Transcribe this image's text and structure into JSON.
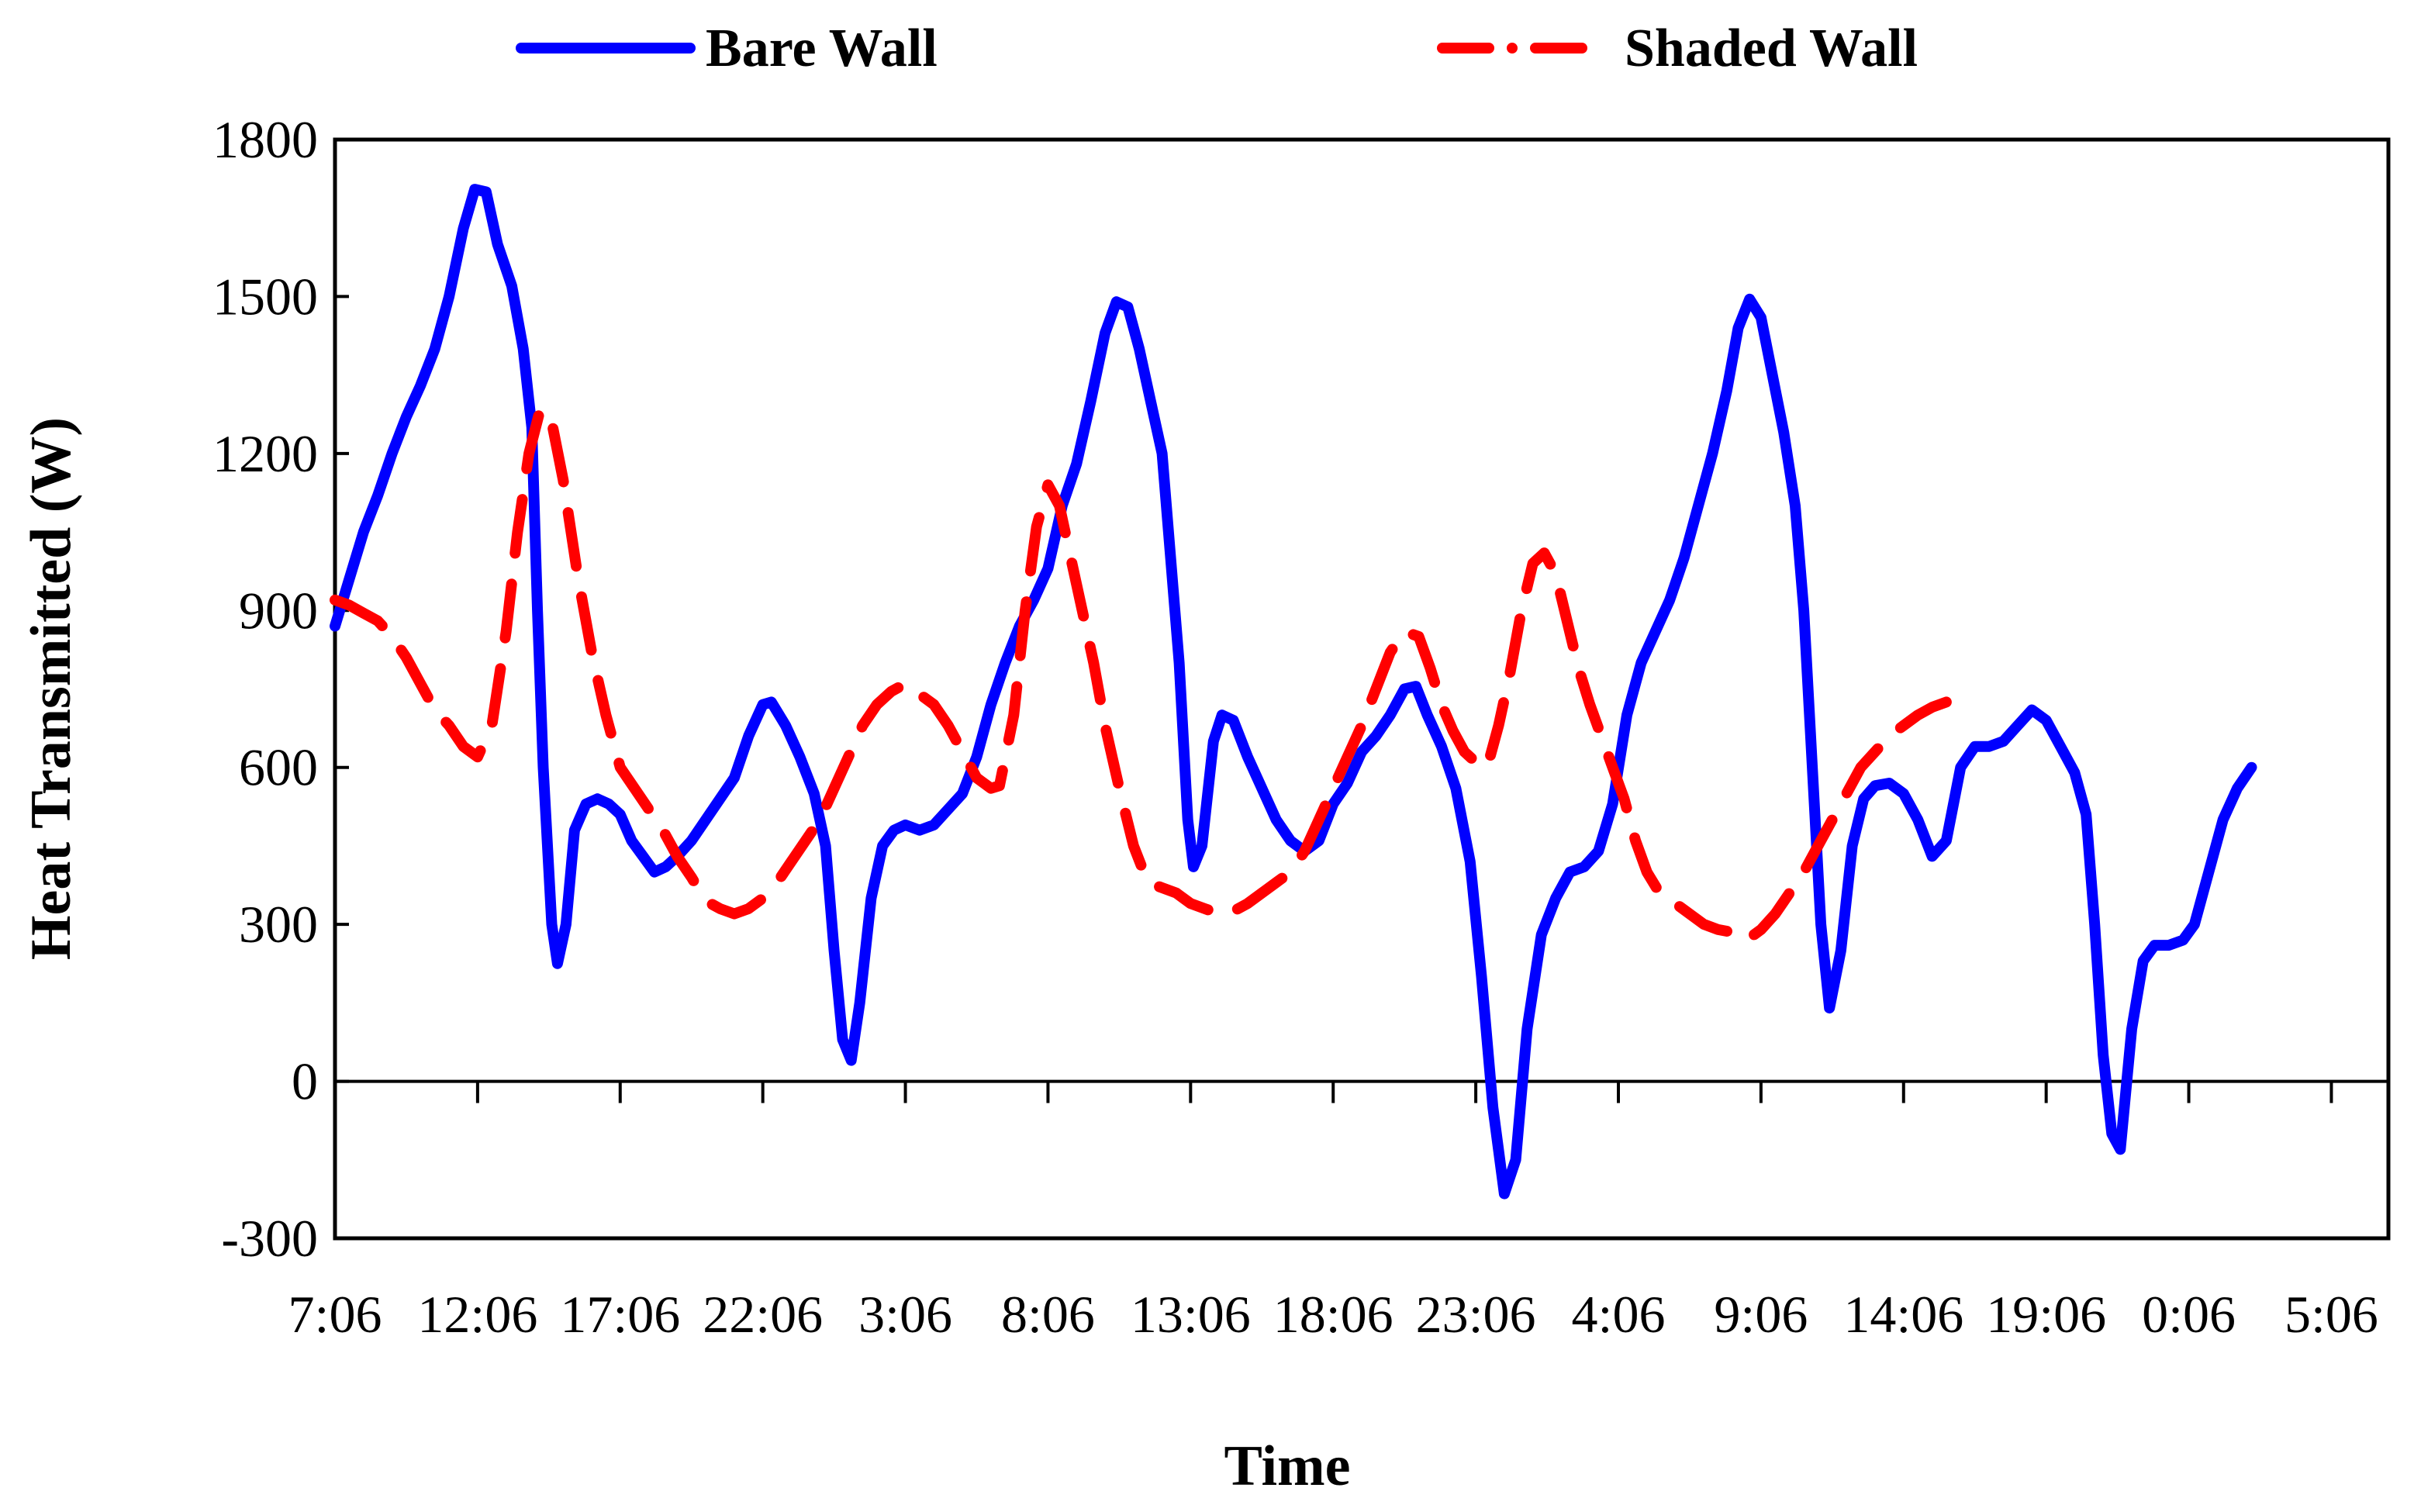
{
  "chart_data": {
    "type": "line",
    "title": "",
    "xlabel": "Time",
    "ylabel": "Heat Transmitted (W)",
    "ylim": [
      -300,
      1800
    ],
    "yticks": [
      -300,
      0,
      300,
      600,
      900,
      1200,
      1500,
      1800
    ],
    "xlim": [
      0,
      72
    ],
    "x_ticks": [
      {
        "x": 0,
        "label": "7:06"
      },
      {
        "x": 5,
        "label": "12:06"
      },
      {
        "x": 10,
        "label": "17:06"
      },
      {
        "x": 15,
        "label": "22:06"
      },
      {
        "x": 20,
        "label": "3:06"
      },
      {
        "x": 25,
        "label": "8:06"
      },
      {
        "x": 30,
        "label": "13:06"
      },
      {
        "x": 35,
        "label": "18:06"
      },
      {
        "x": 40,
        "label": "23:06"
      },
      {
        "x": 45,
        "label": "4:06"
      },
      {
        "x": 50,
        "label": "9:06"
      },
      {
        "x": 55,
        "label": "14:06"
      },
      {
        "x": 60,
        "label": "19:06"
      },
      {
        "x": 65,
        "label": "0:06"
      },
      {
        "x": 70,
        "label": "5:06"
      }
    ],
    "legend": {
      "position": "top"
    },
    "series": [
      {
        "name": "Bare Wall",
        "color": "#0000ff",
        "style": "solid",
        "points": [
          [
            0,
            870
          ],
          [
            0.5,
            960
          ],
          [
            1,
            1050
          ],
          [
            1.5,
            1120
          ],
          [
            2,
            1200
          ],
          [
            2.5,
            1270
          ],
          [
            3,
            1330
          ],
          [
            3.5,
            1400
          ],
          [
            4,
            1500
          ],
          [
            4.5,
            1630
          ],
          [
            4.9,
            1705
          ],
          [
            5.3,
            1700
          ],
          [
            5.7,
            1600
          ],
          [
            6.2,
            1520
          ],
          [
            6.6,
            1400
          ],
          [
            6.9,
            1250
          ],
          [
            7.1,
            900
          ],
          [
            7.3,
            600
          ],
          [
            7.6,
            300
          ],
          [
            7.8,
            225
          ],
          [
            8.1,
            300
          ],
          [
            8.4,
            480
          ],
          [
            8.8,
            530
          ],
          [
            9.2,
            540
          ],
          [
            9.6,
            530
          ],
          [
            10,
            510
          ],
          [
            10.4,
            460
          ],
          [
            10.8,
            430
          ],
          [
            11.2,
            400
          ],
          [
            11.6,
            410
          ],
          [
            12,
            430
          ],
          [
            12.5,
            460
          ],
          [
            13,
            500
          ],
          [
            13.5,
            540
          ],
          [
            14,
            580
          ],
          [
            14.5,
            660
          ],
          [
            15,
            720
          ],
          [
            15.3,
            725
          ],
          [
            15.8,
            680
          ],
          [
            16.3,
            620
          ],
          [
            16.8,
            550
          ],
          [
            17.2,
            450
          ],
          [
            17.5,
            250
          ],
          [
            17.8,
            80
          ],
          [
            18.1,
            40
          ],
          [
            18.4,
            150
          ],
          [
            18.8,
            350
          ],
          [
            19.2,
            450
          ],
          [
            19.6,
            480
          ],
          [
            20,
            490
          ],
          [
            20.5,
            480
          ],
          [
            21,
            490
          ],
          [
            21.5,
            520
          ],
          [
            22,
            550
          ],
          [
            22.5,
            620
          ],
          [
            23,
            720
          ],
          [
            23.5,
            800
          ],
          [
            24,
            870
          ],
          [
            24.5,
            920
          ],
          [
            25,
            980
          ],
          [
            25.5,
            1100
          ],
          [
            26,
            1180
          ],
          [
            26.5,
            1300
          ],
          [
            27,
            1430
          ],
          [
            27.4,
            1490
          ],
          [
            27.8,
            1480
          ],
          [
            28.2,
            1400
          ],
          [
            28.6,
            1300
          ],
          [
            29,
            1200
          ],
          [
            29.3,
            1000
          ],
          [
            29.6,
            800
          ],
          [
            29.9,
            500
          ],
          [
            30.1,
            410
          ],
          [
            30.4,
            450
          ],
          [
            30.8,
            650
          ],
          [
            31.1,
            700
          ],
          [
            31.5,
            690
          ],
          [
            32,
            620
          ],
          [
            32.5,
            560
          ],
          [
            33,
            500
          ],
          [
            33.5,
            460
          ],
          [
            34,
            440
          ],
          [
            34.5,
            460
          ],
          [
            35,
            530
          ],
          [
            35.5,
            570
          ],
          [
            36,
            630
          ],
          [
            36.5,
            660
          ],
          [
            37,
            700
          ],
          [
            37.5,
            750
          ],
          [
            37.9,
            755
          ],
          [
            38.3,
            700
          ],
          [
            38.8,
            640
          ],
          [
            39.3,
            560
          ],
          [
            39.8,
            420
          ],
          [
            40.2,
            200
          ],
          [
            40.6,
            -50
          ],
          [
            41,
            -215
          ],
          [
            41.4,
            -150
          ],
          [
            41.8,
            100
          ],
          [
            42.3,
            280
          ],
          [
            42.8,
            350
          ],
          [
            43.3,
            400
          ],
          [
            43.8,
            410
          ],
          [
            44.3,
            440
          ],
          [
            44.8,
            530
          ],
          [
            45.3,
            700
          ],
          [
            45.8,
            800
          ],
          [
            46.3,
            860
          ],
          [
            46.8,
            920
          ],
          [
            47.3,
            1000
          ],
          [
            47.8,
            1100
          ],
          [
            48.3,
            1200
          ],
          [
            48.8,
            1320
          ],
          [
            49.2,
            1440
          ],
          [
            49.6,
            1495
          ],
          [
            50,
            1460
          ],
          [
            50.4,
            1350
          ],
          [
            50.8,
            1240
          ],
          [
            51.2,
            1100
          ],
          [
            51.5,
            900
          ],
          [
            51.8,
            600
          ],
          [
            52.1,
            300
          ],
          [
            52.4,
            140
          ],
          [
            52.8,
            250
          ],
          [
            53.2,
            450
          ],
          [
            53.6,
            540
          ],
          [
            54,
            565
          ],
          [
            54.5,
            570
          ],
          [
            55,
            550
          ],
          [
            55.5,
            500
          ],
          [
            56,
            430
          ],
          [
            56.5,
            460
          ],
          [
            57,
            600
          ],
          [
            57.5,
            640
          ],
          [
            58,
            640
          ],
          [
            58.5,
            650
          ],
          [
            59,
            680
          ],
          [
            59.5,
            710
          ],
          [
            60,
            690
          ],
          [
            60.5,
            640
          ],
          [
            61,
            590
          ],
          [
            61.4,
            510
          ],
          [
            61.7,
            300
          ],
          [
            62,
            50
          ],
          [
            62.3,
            -100
          ],
          [
            62.6,
            -130
          ],
          [
            63,
            100
          ],
          [
            63.4,
            230
          ],
          [
            63.8,
            260
          ],
          [
            64.3,
            260
          ],
          [
            64.8,
            270
          ],
          [
            65.2,
            300
          ],
          [
            65.7,
            400
          ],
          [
            66.2,
            500
          ],
          [
            66.7,
            560
          ],
          [
            67.2,
            600
          ]
        ]
      },
      {
        "name": "Shaded Wall",
        "color": "#ff0000",
        "style": "dashed",
        "points": [
          [
            0,
            920
          ],
          [
            0.5,
            910
          ],
          [
            1,
            895
          ],
          [
            1.5,
            880
          ],
          [
            2,
            850
          ],
          [
            2.5,
            810
          ],
          [
            3,
            760
          ],
          [
            3.5,
            710
          ],
          [
            4,
            680
          ],
          [
            4.5,
            640
          ],
          [
            5,
            620
          ],
          [
            5.5,
            680
          ],
          [
            6,
            860
          ],
          [
            6.4,
            1050
          ],
          [
            6.8,
            1200
          ],
          [
            7.2,
            1285
          ],
          [
            7.6,
            1260
          ],
          [
            8,
            1150
          ],
          [
            8.5,
            970
          ],
          [
            9,
            820
          ],
          [
            9.5,
            700
          ],
          [
            10,
            600
          ],
          [
            10.5,
            560
          ],
          [
            11,
            520
          ],
          [
            11.5,
            480
          ],
          [
            12,
            430
          ],
          [
            12.5,
            390
          ],
          [
            13,
            345
          ],
          [
            13.5,
            330
          ],
          [
            14,
            320
          ],
          [
            14.5,
            330
          ],
          [
            15,
            350
          ],
          [
            15.5,
            380
          ],
          [
            16,
            420
          ],
          [
            16.5,
            460
          ],
          [
            17,
            500
          ],
          [
            17.5,
            560
          ],
          [
            18,
            620
          ],
          [
            18.5,
            680
          ],
          [
            19,
            720
          ],
          [
            19.5,
            745
          ],
          [
            20,
            760
          ],
          [
            20.5,
            740
          ],
          [
            21,
            720
          ],
          [
            21.5,
            680
          ],
          [
            22,
            630
          ],
          [
            22.5,
            580
          ],
          [
            23,
            560
          ],
          [
            23.3,
            565
          ],
          [
            23.8,
            700
          ],
          [
            24.2,
            900
          ],
          [
            24.6,
            1060
          ],
          [
            25,
            1140
          ],
          [
            25.4,
            1100
          ],
          [
            25.8,
            1000
          ],
          [
            26.2,
            900
          ],
          [
            26.6,
            800
          ],
          [
            27,
            680
          ],
          [
            27.5,
            560
          ],
          [
            28,
            450
          ],
          [
            28.5,
            380
          ],
          [
            29,
            370
          ],
          [
            29.5,
            360
          ],
          [
            30,
            340
          ],
          [
            30.5,
            330
          ],
          [
            31,
            320
          ],
          [
            31.5,
            325
          ],
          [
            32,
            340
          ],
          [
            32.5,
            360
          ],
          [
            33,
            380
          ],
          [
            33.5,
            400
          ],
          [
            34,
            440
          ],
          [
            34.5,
            500
          ],
          [
            35,
            560
          ],
          [
            35.5,
            620
          ],
          [
            36,
            680
          ],
          [
            36.5,
            750
          ],
          [
            37,
            820
          ],
          [
            37.5,
            860
          ],
          [
            38,
            850
          ],
          [
            38.4,
            790
          ],
          [
            38.8,
            720
          ],
          [
            39.2,
            670
          ],
          [
            39.6,
            630
          ],
          [
            40,
            610
          ],
          [
            40.4,
            600
          ],
          [
            40.8,
            680
          ],
          [
            41.2,
            780
          ],
          [
            41.6,
            900
          ],
          [
            42,
            990
          ],
          [
            42.4,
            1010
          ],
          [
            42.8,
            970
          ],
          [
            43.2,
            880
          ],
          [
            43.6,
            790
          ],
          [
            44,
            720
          ],
          [
            44.4,
            660
          ],
          [
            44.8,
            600
          ],
          [
            45.2,
            540
          ],
          [
            45.6,
            460
          ],
          [
            46,
            400
          ],
          [
            46.5,
            355
          ],
          [
            47,
            340
          ],
          [
            47.5,
            320
          ],
          [
            48,
            300
          ],
          [
            48.5,
            290
          ],
          [
            49,
            285
          ],
          [
            49.5,
            270
          ],
          [
            50,
            290
          ],
          [
            50.5,
            320
          ],
          [
            51,
            360
          ],
          [
            51.5,
            400
          ],
          [
            52,
            450
          ],
          [
            52.5,
            500
          ],
          [
            53,
            550
          ],
          [
            53.5,
            600
          ],
          [
            54,
            630
          ],
          [
            54.5,
            660
          ],
          [
            55,
            680
          ],
          [
            55.5,
            700
          ],
          [
            56,
            715
          ],
          [
            56.5,
            725
          ]
        ]
      }
    ]
  }
}
